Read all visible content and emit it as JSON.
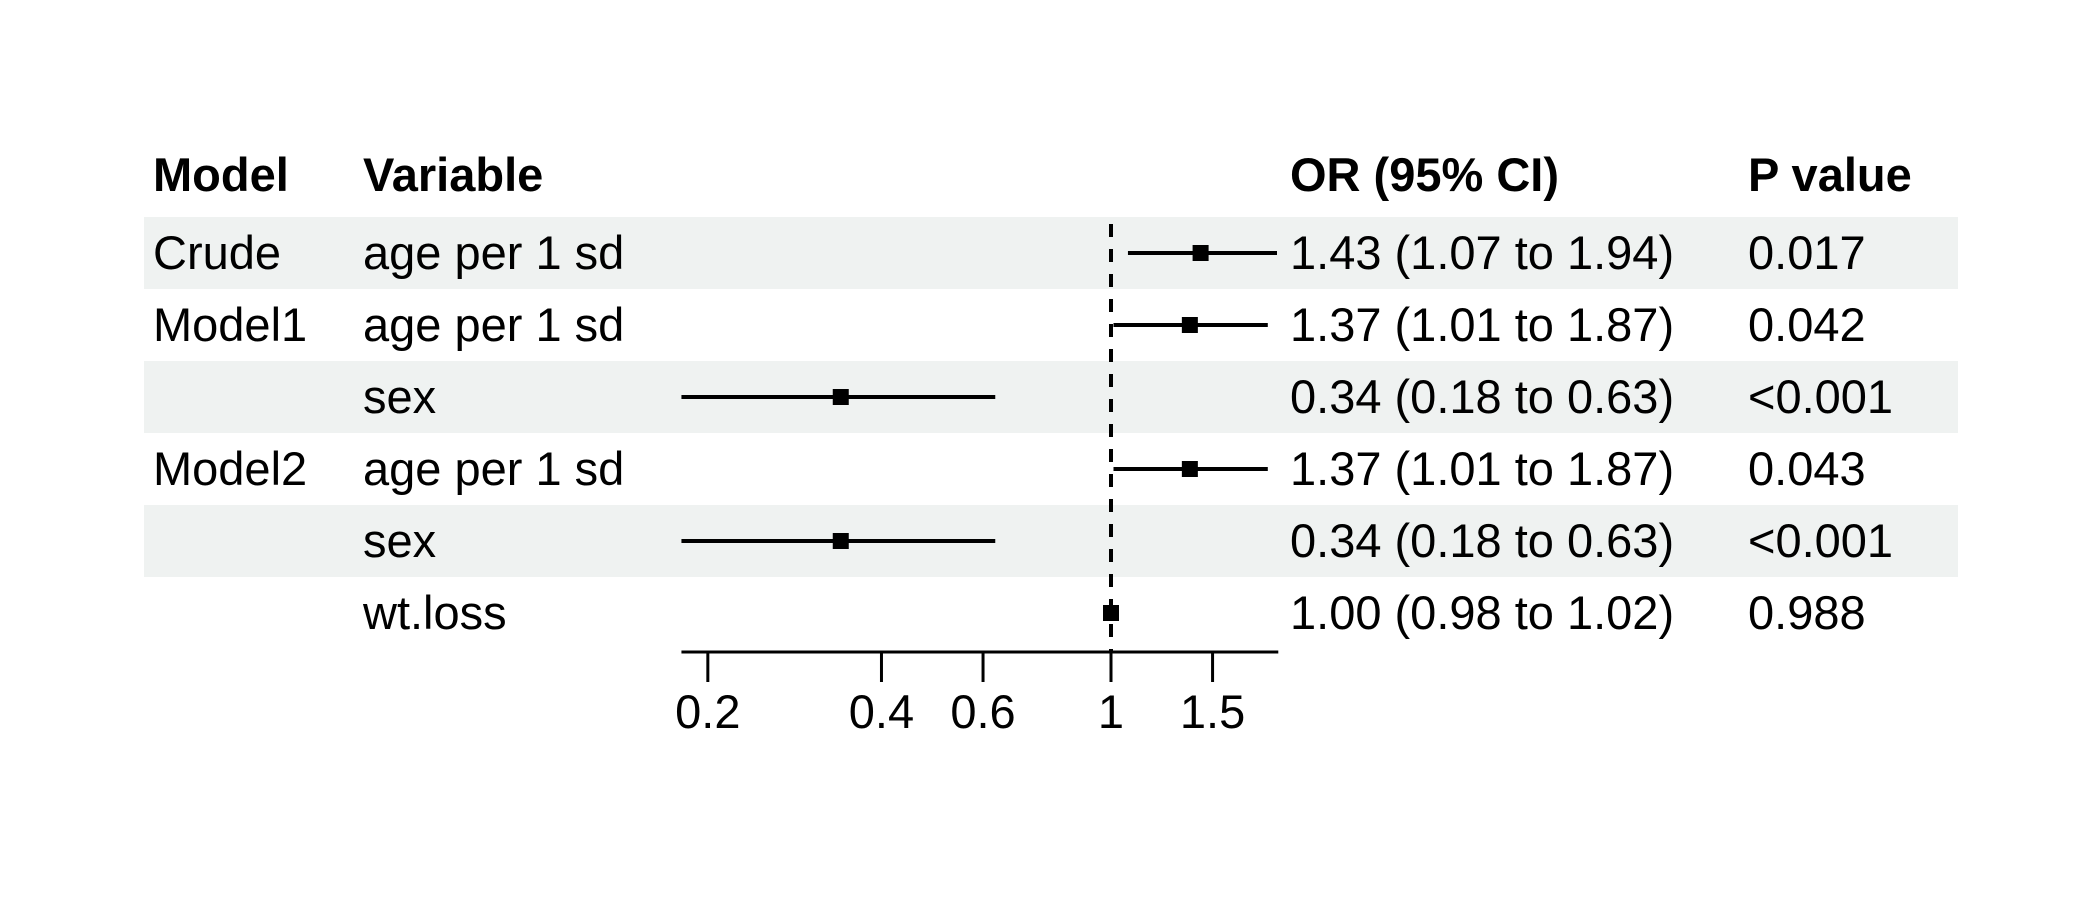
{
  "table": {
    "headers": {
      "model": "Model",
      "variable": "Variable",
      "or_ci": "OR (95% CI)",
      "p": "P value"
    },
    "rows": [
      {
        "model": "Crude",
        "variable": "age per 1 sd",
        "or_text": "1.43 (1.07 to 1.94)",
        "p": "0.017"
      },
      {
        "model": "Model1",
        "variable": "age per 1 sd",
        "or_text": "1.37 (1.01 to 1.87)",
        "p": "0.042"
      },
      {
        "model": "",
        "variable": "sex",
        "or_text": "0.34 (0.18 to 0.63)",
        "p": "<0.001"
      },
      {
        "model": "Model2",
        "variable": "age per 1 sd",
        "or_text": "1.37 (1.01 to 1.87)",
        "p": "0.043"
      },
      {
        "model": "",
        "variable": "sex",
        "or_text": "0.34 (0.18 to 0.63)",
        "p": "<0.001"
      },
      {
        "model": "",
        "variable": "wt.loss",
        "or_text": "1.00 (0.98 to 1.02)",
        "p": "0.988"
      }
    ]
  },
  "chart_data": {
    "type": "scatter",
    "subtype": "forest-plot",
    "x_scale": "log",
    "xlim": [
      0.18,
      1.95
    ],
    "x_ticks": [
      0.2,
      0.4,
      0.6,
      1,
      1.5
    ],
    "x_tick_labels": [
      "0.2",
      "0.4",
      "0.6",
      "1",
      "1.5"
    ],
    "reference_line_x": 1,
    "grid": false,
    "legend": "none",
    "rows": [
      {
        "model": "Crude",
        "variable": "age per 1 sd",
        "or": 1.43,
        "ci_low": 1.07,
        "ci_high": 1.94,
        "p": "0.017"
      },
      {
        "model": "Model1",
        "variable": "age per 1 sd",
        "or": 1.37,
        "ci_low": 1.01,
        "ci_high": 1.87,
        "p": "0.042"
      },
      {
        "model": "",
        "variable": "sex",
        "or": 0.34,
        "ci_low": 0.18,
        "ci_high": 0.63,
        "p": "<0.001"
      },
      {
        "model": "Model2",
        "variable": "age per 1 sd",
        "or": 1.37,
        "ci_low": 1.01,
        "ci_high": 1.87,
        "p": "0.043"
      },
      {
        "model": "",
        "variable": "sex",
        "or": 0.34,
        "ci_low": 0.18,
        "ci_high": 0.63,
        "p": "<0.001"
      },
      {
        "model": "",
        "variable": "wt.loss",
        "or": 1.0,
        "ci_low": 0.98,
        "ci_high": 1.02,
        "p": "0.988"
      }
    ]
  },
  "colors": {
    "stripe": "#eff2f1",
    "ink": "#000000",
    "background": "#ffffff"
  }
}
